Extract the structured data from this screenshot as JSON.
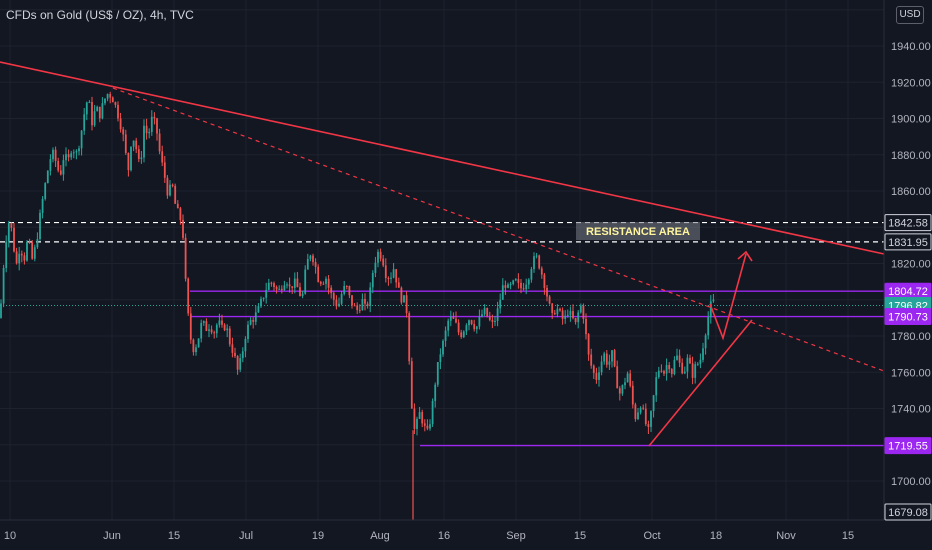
{
  "header": {
    "title": "CFDs on Gold (US$ / OZ), 4h, TVC",
    "currency": "USD"
  },
  "colors": {
    "background": "#131722",
    "up": "#26a69a",
    "down": "#ef5350",
    "trend": "#f23645",
    "level": "#9c27f0",
    "purple_tag": "#9c27f0",
    "current_tag": "#26a69a",
    "text": "#b2b5be",
    "annotation": "#fff59d"
  },
  "chart_data": {
    "type": "candlestick",
    "title": "CFDs on Gold (US$ / OZ), 4h, TVC",
    "ylim": [
      1678,
      1975
    ],
    "x_tick_labels": [
      "10",
      "Jun",
      "15",
      "Jul",
      "19",
      "Aug",
      "16",
      "Sep",
      "15",
      "Oct",
      "18",
      "Nov",
      "15"
    ],
    "y_tick_labels": [
      "1940.00",
      "1920.00",
      "1900.00",
      "1880.00",
      "1860.00",
      "1820.00",
      "1780.00",
      "1760.00",
      "1740.00",
      "1700.00"
    ],
    "y_tick_values": [
      1940,
      1920,
      1900,
      1880,
      1860,
      1820,
      1780,
      1760,
      1740,
      1700
    ],
    "price_tags": [
      {
        "label": "1842.58",
        "value": 1842.58,
        "style": "white"
      },
      {
        "label": "1831.95",
        "value": 1831.95,
        "style": "white"
      },
      {
        "label": "1804.72",
        "value": 1804.72,
        "style": "purple"
      },
      {
        "label": "1796.82",
        "value": 1796.82,
        "style": "current"
      },
      {
        "label": "1790.73",
        "value": 1790.73,
        "style": "purple"
      },
      {
        "label": "1719.55",
        "value": 1719.55,
        "style": "purple"
      },
      {
        "label": "1679.08",
        "value": 1679.08,
        "style": "white"
      }
    ],
    "annotation": "RESISTANCE AREA",
    "close_path": [
      [
        0,
        1790
      ],
      [
        4,
        1822
      ],
      [
        8,
        1844
      ],
      [
        12,
        1838
      ],
      [
        16,
        1818
      ],
      [
        20,
        1830
      ],
      [
        24,
        1822
      ],
      [
        28,
        1834
      ],
      [
        32,
        1822
      ],
      [
        36,
        1830
      ],
      [
        40,
        1846
      ],
      [
        44,
        1860
      ],
      [
        48,
        1872
      ],
      [
        52,
        1882
      ],
      [
        56,
        1876
      ],
      [
        60,
        1868
      ],
      [
        64,
        1880
      ],
      [
        68,
        1876
      ],
      [
        72,
        1885
      ],
      [
        76,
        1880
      ],
      [
        80,
        1888
      ],
      [
        84,
        1902
      ],
      [
        88,
        1912
      ],
      [
        92,
        1898
      ],
      [
        96,
        1906
      ],
      [
        100,
        1902
      ],
      [
        104,
        1910
      ],
      [
        108,
        1914
      ],
      [
        112,
        1912
      ],
      [
        116,
        1906
      ],
      [
        120,
        1898
      ],
      [
        124,
        1888
      ],
      [
        128,
        1870
      ],
      [
        132,
        1892
      ],
      [
        136,
        1884
      ],
      [
        140,
        1872
      ],
      [
        144,
        1896
      ],
      [
        148,
        1890
      ],
      [
        152,
        1900
      ],
      [
        156,
        1896
      ],
      [
        160,
        1880
      ],
      [
        164,
        1870
      ],
      [
        168,
        1858
      ],
      [
        172,
        1864
      ],
      [
        176,
        1850
      ],
      [
        180,
        1846
      ],
      [
        184,
        1832
      ],
      [
        186,
        1804
      ],
      [
        190,
        1780
      ],
      [
        194,
        1772
      ],
      [
        198,
        1778
      ],
      [
        202,
        1788
      ],
      [
        206,
        1784
      ],
      [
        210,
        1786
      ],
      [
        214,
        1782
      ],
      [
        218,
        1788
      ],
      [
        222,
        1784
      ],
      [
        226,
        1786
      ],
      [
        230,
        1776
      ],
      [
        234,
        1770
      ],
      [
        238,
        1760
      ],
      [
        242,
        1770
      ],
      [
        246,
        1782
      ],
      [
        250,
        1788
      ],
      [
        254,
        1790
      ],
      [
        258,
        1794
      ],
      [
        262,
        1800
      ],
      [
        266,
        1806
      ],
      [
        270,
        1810
      ],
      [
        274,
        1808
      ],
      [
        278,
        1804
      ],
      [
        282,
        1808
      ],
      [
        286,
        1812
      ],
      [
        290,
        1806
      ],
      [
        294,
        1810
      ],
      [
        298,
        1806
      ],
      [
        302,
        1800
      ],
      [
        306,
        1818
      ],
      [
        310,
        1826
      ],
      [
        314,
        1822
      ],
      [
        318,
        1812
      ],
      [
        322,
        1810
      ],
      [
        326,
        1812
      ],
      [
        330,
        1804
      ],
      [
        334,
        1800
      ],
      [
        338,
        1796
      ],
      [
        342,
        1804
      ],
      [
        346,
        1808
      ],
      [
        350,
        1800
      ],
      [
        354,
        1796
      ],
      [
        358,
        1794
      ],
      [
        362,
        1800
      ],
      [
        366,
        1794
      ],
      [
        370,
        1804
      ],
      [
        374,
        1820
      ],
      [
        378,
        1826
      ],
      [
        382,
        1824
      ],
      [
        386,
        1814
      ],
      [
        390,
        1812
      ],
      [
        394,
        1818
      ],
      [
        398,
        1806
      ],
      [
        402,
        1800
      ],
      [
        406,
        1800
      ],
      [
        408,
        1780
      ],
      [
        410,
        1760
      ],
      [
        412,
        1740
      ],
      [
        414,
        1728
      ],
      [
        416,
        1730
      ],
      [
        420,
        1738
      ],
      [
        424,
        1730
      ],
      [
        428,
        1726
      ],
      [
        432,
        1740
      ],
      [
        436,
        1758
      ],
      [
        440,
        1770
      ],
      [
        444,
        1778
      ],
      [
        448,
        1788
      ],
      [
        452,
        1790
      ],
      [
        456,
        1786
      ],
      [
        460,
        1780
      ],
      [
        464,
        1784
      ],
      [
        468,
        1790
      ],
      [
        472,
        1788
      ],
      [
        476,
        1784
      ],
      [
        480,
        1790
      ],
      [
        484,
        1794
      ],
      [
        488,
        1790
      ],
      [
        492,
        1786
      ],
      [
        496,
        1790
      ],
      [
        500,
        1800
      ],
      [
        504,
        1810
      ],
      [
        508,
        1806
      ],
      [
        512,
        1808
      ],
      [
        516,
        1810
      ],
      [
        520,
        1806
      ],
      [
        524,
        1808
      ],
      [
        528,
        1812
      ],
      [
        532,
        1820
      ],
      [
        536,
        1824
      ],
      [
        540,
        1818
      ],
      [
        544,
        1810
      ],
      [
        548,
        1800
      ],
      [
        552,
        1790
      ],
      [
        556,
        1796
      ],
      [
        560,
        1792
      ],
      [
        564,
        1788
      ],
      [
        568,
        1794
      ],
      [
        572,
        1790
      ],
      [
        576,
        1786
      ],
      [
        580,
        1798
      ],
      [
        584,
        1790
      ],
      [
        588,
        1770
      ],
      [
        592,
        1762
      ],
      [
        596,
        1756
      ],
      [
        600,
        1764
      ],
      [
        604,
        1770
      ],
      [
        608,
        1764
      ],
      [
        612,
        1770
      ],
      [
        616,
        1756
      ],
      [
        620,
        1748
      ],
      [
        624,
        1754
      ],
      [
        628,
        1760
      ],
      [
        632,
        1744
      ],
      [
        636,
        1734
      ],
      [
        640,
        1744
      ],
      [
        644,
        1736
      ],
      [
        648,
        1726
      ],
      [
        652,
        1740
      ],
      [
        656,
        1756
      ],
      [
        660,
        1764
      ],
      [
        664,
        1760
      ],
      [
        668,
        1766
      ],
      [
        672,
        1760
      ],
      [
        676,
        1770
      ],
      [
        680,
        1764
      ],
      [
        684,
        1760
      ],
      [
        688,
        1768
      ],
      [
        692,
        1758
      ],
      [
        696,
        1764
      ],
      [
        700,
        1766
      ],
      [
        704,
        1778
      ],
      [
        708,
        1790
      ],
      [
        712,
        1800
      ],
      [
        716,
        1796
      ]
    ]
  }
}
